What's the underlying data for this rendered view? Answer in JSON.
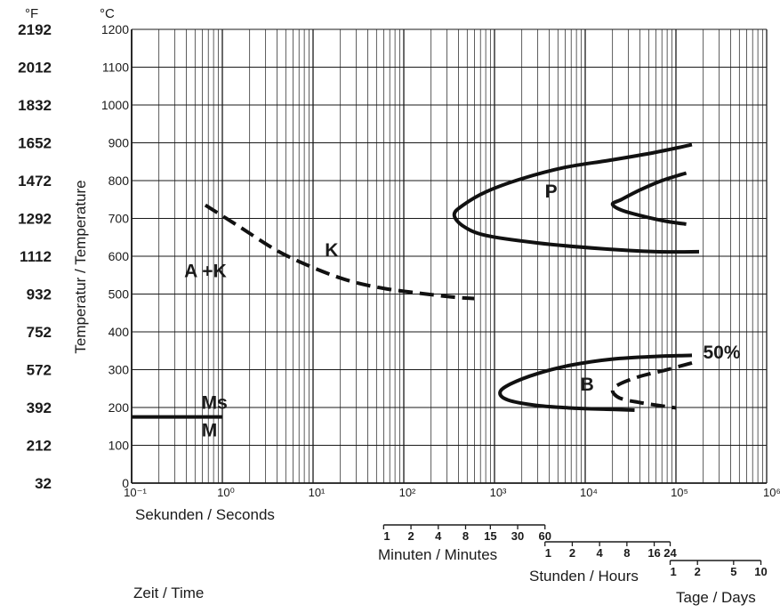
{
  "chart_data": {
    "type": "line",
    "title": "",
    "fahrenheit_unit": "°F",
    "celsius_unit": "°C",
    "ylabel": "Temperatur / Temperature",
    "xlabel": "Sekunden / Seconds",
    "time_label": "Zeit / Time",
    "x_scale": "log",
    "xlim": [
      0.1,
      1000000
    ],
    "ylim": [
      0,
      1200
    ],
    "grid": true,
    "fahrenheit_ticks": [
      {
        "c": 0,
        "label": "32"
      },
      {
        "c": 100,
        "label": "212"
      },
      {
        "c": 200,
        "label": "392"
      },
      {
        "c": 300,
        "label": "572"
      },
      {
        "c": 400,
        "label": "752"
      },
      {
        "c": 500,
        "label": "932"
      },
      {
        "c": 600,
        "label": "1112"
      },
      {
        "c": 700,
        "label": "1292"
      },
      {
        "c": 800,
        "label": "1472"
      },
      {
        "c": 900,
        "label": "1652"
      },
      {
        "c": 1000,
        "label": "1832"
      },
      {
        "c": 1100,
        "label": "2012"
      },
      {
        "c": 1200,
        "label": "2192"
      }
    ],
    "celsius_ticks": [
      {
        "c": 0,
        "label": "0"
      },
      {
        "c": 100,
        "label": "100"
      },
      {
        "c": 200,
        "label": "200"
      },
      {
        "c": 300,
        "label": "300"
      },
      {
        "c": 400,
        "label": "400"
      },
      {
        "c": 500,
        "label": "500"
      },
      {
        "c": 600,
        "label": "600"
      },
      {
        "c": 700,
        "label": "700"
      },
      {
        "c": 800,
        "label": "800"
      },
      {
        "c": 900,
        "label": "900"
      },
      {
        "c": 1000,
        "label": "1000"
      },
      {
        "c": 1100,
        "label": "1100"
      },
      {
        "c": 1200,
        "label": "1200"
      }
    ],
    "x_ticks": [
      {
        "s": 0.1,
        "label": "10⁻¹"
      },
      {
        "s": 1,
        "label": "10⁰"
      },
      {
        "s": 10,
        "label": "10¹"
      },
      {
        "s": 100,
        "label": "10²"
      },
      {
        "s": 1000,
        "label": "10³"
      },
      {
        "s": 10000,
        "label": "10⁴"
      },
      {
        "s": 100000,
        "label": "10⁵"
      },
      {
        "s": 1000000,
        "label": "10⁶"
      }
    ],
    "time_scales": [
      {
        "label": "Minuten / Minutes",
        "unit_seconds": 60,
        "ticks": [
          {
            "v": 1,
            "label": "1"
          },
          {
            "v": 2,
            "label": "2"
          },
          {
            "v": 4,
            "label": "4"
          },
          {
            "v": 8,
            "label": "8"
          },
          {
            "v": 15,
            "label": "15"
          },
          {
            "v": 30,
            "label": "30"
          },
          {
            "v": 60,
            "label": "60"
          }
        ]
      },
      {
        "label": "Stunden / Hours",
        "unit_seconds": 3600,
        "ticks": [
          {
            "v": 1,
            "label": "1"
          },
          {
            "v": 2,
            "label": "2"
          },
          {
            "v": 4,
            "label": "4"
          },
          {
            "v": 8,
            "label": "8"
          },
          {
            "v": 16,
            "label": "16"
          },
          {
            "v": 24,
            "label": "24"
          }
        ]
      },
      {
        "label": "Tage / Days",
        "unit_seconds": 86400,
        "ticks": [
          {
            "v": 1,
            "label": "1"
          },
          {
            "v": 2,
            "label": "2"
          },
          {
            "v": 5,
            "label": "5"
          },
          {
            "v": 10,
            "label": "10"
          }
        ]
      }
    ],
    "series": [
      {
        "kind": "dashed",
        "points": [
          [
            0.65,
            735
          ],
          [
            1.5,
            680
          ],
          [
            4,
            615
          ],
          [
            10,
            570
          ],
          [
            25,
            535
          ],
          [
            60,
            515
          ],
          [
            150,
            502
          ],
          [
            350,
            492
          ],
          [
            600,
            488
          ]
        ]
      },
      {
        "kind": "solid",
        "points": [
          [
            150000,
            895
          ],
          [
            60000,
            875
          ],
          [
            20000,
            855
          ],
          [
            6000,
            835
          ],
          [
            2000,
            805
          ],
          [
            800,
            770
          ],
          [
            450,
            735
          ],
          [
            360,
            710
          ],
          [
            450,
            680
          ],
          [
            800,
            655
          ],
          [
            3000,
            635
          ],
          [
            15000,
            620
          ],
          [
            60000,
            612
          ],
          [
            180000,
            612
          ]
        ]
      },
      {
        "kind": "solid",
        "points": [
          [
            130000,
            820
          ],
          [
            70000,
            800
          ],
          [
            40000,
            775
          ],
          [
            25000,
            750
          ],
          [
            20000,
            738
          ],
          [
            25000,
            722
          ],
          [
            45000,
            705
          ],
          [
            80000,
            692
          ],
          [
            130000,
            685
          ]
        ]
      },
      {
        "kind": "solid",
        "points": [
          [
            150000,
            338
          ],
          [
            60000,
            335
          ],
          [
            20000,
            328
          ],
          [
            7000,
            312
          ],
          [
            3000,
            290
          ],
          [
            1500,
            262
          ],
          [
            1150,
            240
          ],
          [
            1400,
            220
          ],
          [
            3000,
            205
          ],
          [
            8000,
            198
          ],
          [
            20000,
            195
          ],
          [
            35000,
            193
          ]
        ]
      },
      {
        "kind": "dashed",
        "points": [
          [
            150000,
            318
          ],
          [
            80000,
            300
          ],
          [
            40000,
            282
          ],
          [
            24000,
            262
          ],
          [
            20000,
            245
          ],
          [
            24000,
            225
          ],
          [
            40000,
            213
          ],
          [
            75000,
            203
          ],
          [
            100000,
            199
          ]
        ]
      },
      {
        "kind": "solid",
        "points": [
          [
            0.1,
            175
          ],
          [
            1.0,
            175
          ]
        ]
      }
    ],
    "annotations": [
      {
        "text": "A +K",
        "x": 0.65,
        "y": 545
      },
      {
        "text": "K",
        "x": 16,
        "y": 600
      },
      {
        "text": "P",
        "x": 4200,
        "y": 755
      },
      {
        "text": "B",
        "x": 10500,
        "y": 245
      },
      {
        "text": "50%",
        "x": 320000,
        "y": 330
      },
      {
        "text": "Ms",
        "x": 0.82,
        "y": 197
      },
      {
        "text": "M",
        "x": 0.72,
        "y": 123
      }
    ]
  }
}
